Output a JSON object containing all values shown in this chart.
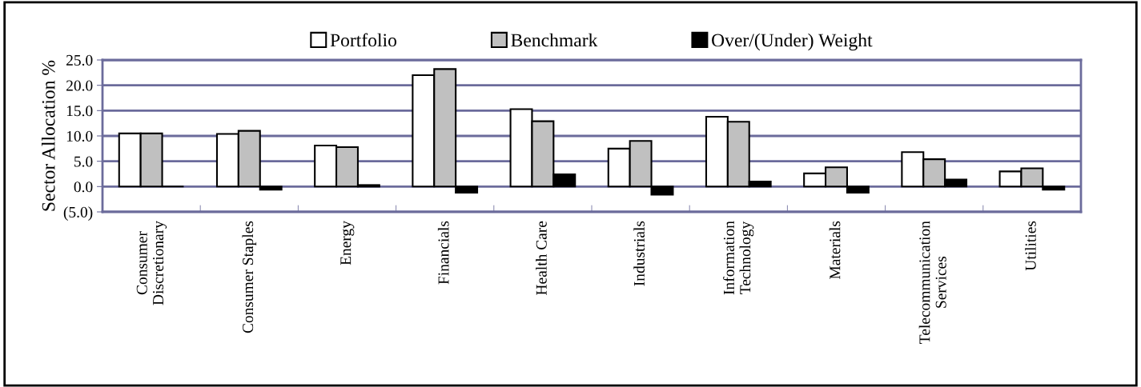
{
  "chart_data": {
    "type": "bar",
    "ylabel": "Sector Allocation %",
    "categories": [
      "Consumer\nDiscretionary",
      "Consumer Staples",
      "Energy",
      "Financials",
      "Health Care",
      "Industrials",
      "Information\nTechnology",
      "Materials",
      "Telecommunication\nServices",
      "Utilities"
    ],
    "series": [
      {
        "name": "Portfolio",
        "color": "#ffffff",
        "values": [
          10.5,
          10.4,
          8.1,
          22.0,
          15.3,
          7.5,
          13.8,
          2.6,
          6.8,
          3.0
        ]
      },
      {
        "name": "Benchmark",
        "color": "#c0c0c0",
        "values": [
          10.5,
          11.0,
          7.8,
          23.2,
          12.9,
          9.0,
          12.8,
          3.8,
          5.4,
          3.6
        ]
      },
      {
        "name": "Over/(Under) Weight",
        "color": "#000000",
        "values": [
          0.0,
          -0.6,
          0.3,
          -1.2,
          2.4,
          -1.6,
          1.0,
          -1.2,
          1.4,
          -0.6
        ]
      }
    ],
    "ylim": [
      -5,
      25
    ],
    "yticks": [
      {
        "value": -5,
        "label": "(5.0)"
      },
      {
        "value": 0,
        "label": "0.0"
      },
      {
        "value": 5,
        "label": "5.0"
      },
      {
        "value": 10,
        "label": "10.0"
      },
      {
        "value": 15,
        "label": "15.0"
      },
      {
        "value": 20,
        "label": "20.0"
      },
      {
        "value": 25,
        "label": "25.0"
      }
    ],
    "grid": "y",
    "legend": "top"
  }
}
